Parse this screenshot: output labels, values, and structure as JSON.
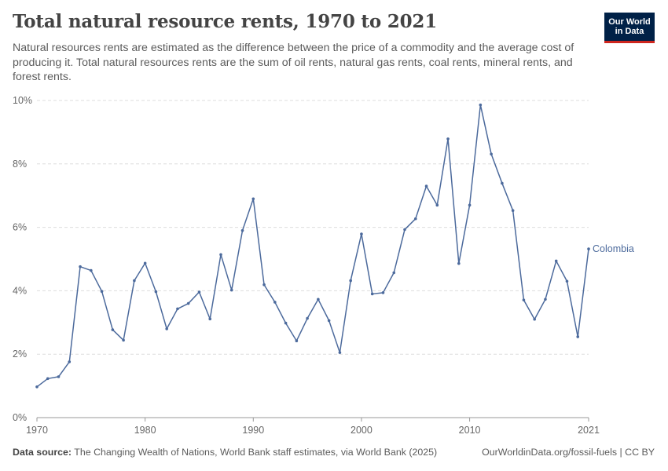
{
  "header": {
    "title": "Total natural resource rents, 1970 to 2021",
    "subtitle": "Natural resources rents are estimated as the difference between the price of a commodity and the average cost of producing it. Total natural resources rents are the sum of oil rents, natural gas rents, coal rents, mineral rents, and forest rents."
  },
  "logo": {
    "line1": "Our World",
    "line2": "in Data",
    "bg_color": "#002147",
    "accent_color": "#ce261e"
  },
  "footer": {
    "source_label": "Data source:",
    "source_text": "The Changing Wealth of Nations, World Bank staff estimates, via World Bank (2025)",
    "credit": "OurWorldinData.org/fossil-fuels | CC BY"
  },
  "chart_data": {
    "type": "line",
    "title": "Total natural resource rents, 1970 to 2021",
    "xlabel": "",
    "ylabel": "",
    "xlim": [
      1970,
      2021
    ],
    "ylim": [
      0,
      10
    ],
    "x_ticks": [
      1970,
      1980,
      1990,
      2000,
      2010,
      2021
    ],
    "y_ticks": [
      0,
      2,
      4,
      6,
      8,
      10
    ],
    "y_tick_labels": [
      "0%",
      "2%",
      "4%",
      "6%",
      "8%",
      "10%"
    ],
    "grid": true,
    "series": [
      {
        "name": "Colombia",
        "color": "#4c6a9c",
        "x": [
          1970,
          1971,
          1972,
          1973,
          1974,
          1975,
          1976,
          1977,
          1978,
          1979,
          1980,
          1981,
          1982,
          1983,
          1984,
          1985,
          1986,
          1987,
          1988,
          1989,
          1990,
          1991,
          1992,
          1993,
          1994,
          1995,
          1996,
          1997,
          1998,
          1999,
          2000,
          2001,
          2002,
          2003,
          2004,
          2005,
          2006,
          2007,
          2008,
          2009,
          2010,
          2011,
          2012,
          2013,
          2014,
          2015,
          2016,
          2017,
          2018,
          2019,
          2020,
          2021
        ],
        "values": [
          0.97,
          1.23,
          1.29,
          1.76,
          4.76,
          4.64,
          3.98,
          2.77,
          2.44,
          4.32,
          4.87,
          3.97,
          2.8,
          3.43,
          3.6,
          3.96,
          3.11,
          5.14,
          4.02,
          5.9,
          6.9,
          4.19,
          3.64,
          2.98,
          2.42,
          3.13,
          3.73,
          3.06,
          2.05,
          4.32,
          5.79,
          3.9,
          3.94,
          4.57,
          5.93,
          6.27,
          7.3,
          6.7,
          8.79,
          4.86,
          6.7,
          9.86,
          8.31,
          7.39,
          6.53,
          3.71,
          3.1,
          3.73,
          4.94,
          4.3,
          2.55,
          5.32
        ]
      }
    ]
  }
}
